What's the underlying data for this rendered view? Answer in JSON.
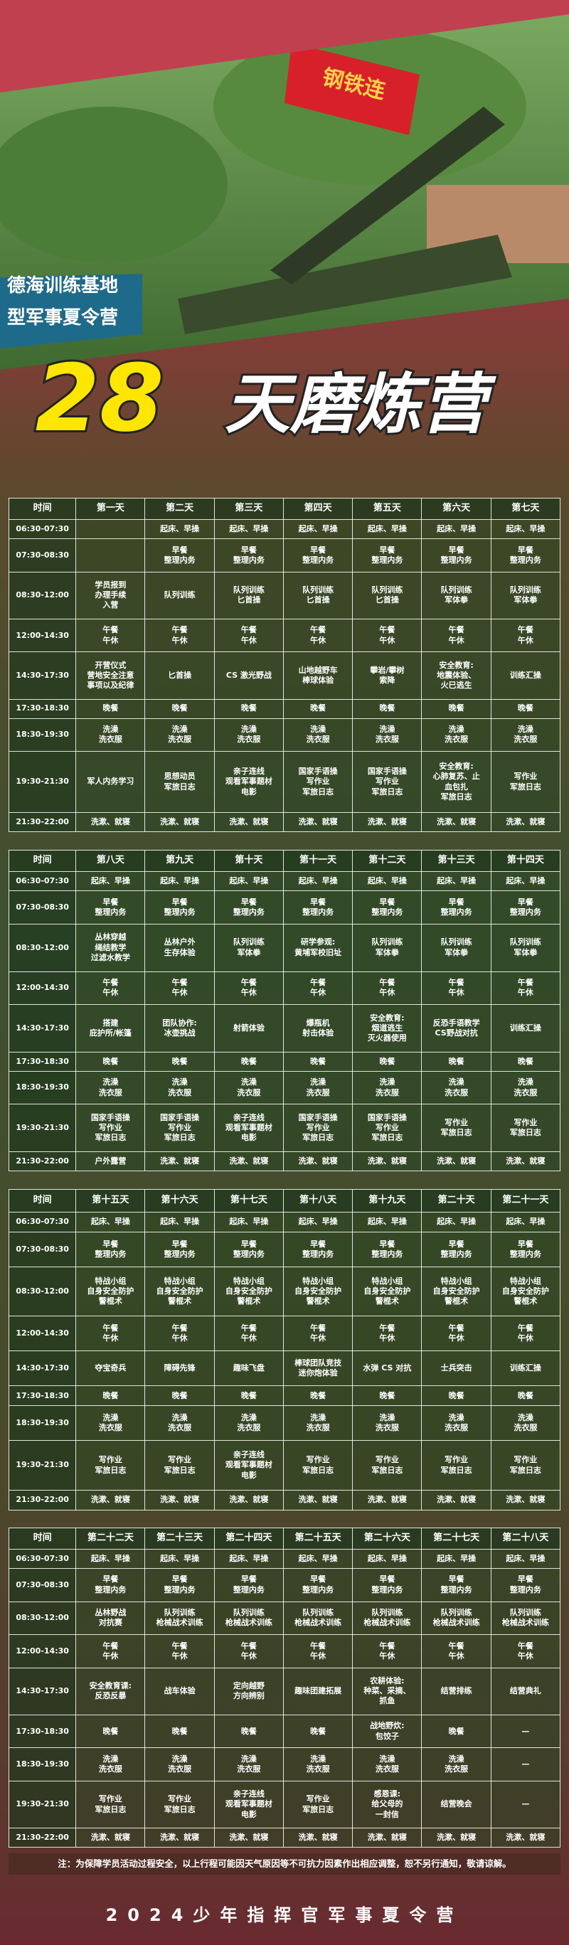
{
  "photo": {
    "flag": "钢铁连",
    "banner_lines": [
      "德海训练基地",
      "型军事夏令营"
    ]
  },
  "title": {
    "number": "28",
    "text": "天磨炼营"
  },
  "tables": [
    {
      "header": [
        "时间",
        "第一天",
        "第二天",
        "第三天",
        "第四天",
        "第五天",
        "第六天",
        "第七天"
      ],
      "rows": [
        [
          "06:30-07:30",
          null,
          "起床、早操",
          "起床、早操",
          "起床、早操",
          "起床、早操",
          "起床、早操",
          "起床、早操"
        ],
        [
          "07:30-08:30",
          null,
          "早餐\n整理内务",
          "早餐\n整理内务",
          "早餐\n整理内务",
          "早餐\n整理内务",
          "早餐\n整理内务",
          "早餐\n整理内务"
        ],
        [
          "08:30-12:00",
          "学员报到\n办理手续\n入营",
          "队列训练",
          "队列训练\n匕首操",
          "队列训练\n匕首操",
          "队列训练\n匕首操",
          "队列训练\n军体拳",
          "队列训练\n军体拳"
        ],
        [
          "12:00-14:30",
          "午餐\n午休",
          "午餐\n午休",
          "午餐\n午休",
          "午餐\n午休",
          "午餐\n午休",
          "午餐\n午休",
          "午餐\n午休"
        ],
        [
          "14:30-17:30",
          "开营仪式\n营地安全注意\n事项以及纪律",
          "匕首操",
          "CS 激光野战",
          "山地越野车\n棒球体验",
          "攀岩/攀树\n索降",
          "安全教育:\n地震体验、\n火巳逃生",
          "训练汇操"
        ],
        [
          "17:30-18:30",
          "晚餐",
          "晚餐",
          "晚餐",
          "晚餐",
          "晚餐",
          "晚餐",
          "晚餐"
        ],
        [
          "18:30-19:30",
          "洗澡\n洗衣服",
          "洗澡\n洗衣服",
          "洗澡\n洗衣服",
          "洗澡\n洗衣服",
          "洗澡\n洗衣服",
          "洗澡\n洗衣服",
          "洗澡\n洗衣服"
        ],
        [
          "19:30-21:30",
          "军人内务学习",
          "思想动员\n军旅日志",
          "亲子连线\n观看军事题材\n电影",
          "国家手语操\n写作业\n军旅日志",
          "国家手语操\n写作业\n军旅日志",
          "安全教育:\n心肺复苏、止\n血包扎\n军旅日志",
          "写作业\n军旅日志"
        ],
        [
          "21:30-22:00",
          "洗漱、就寝",
          "洗漱、就寝",
          "洗漱、就寝",
          "洗漱、就寝",
          "洗漱、就寝",
          "洗漱、就寝",
          "洗漱、就寝"
        ]
      ]
    },
    {
      "header": [
        "时间",
        "第八天",
        "第九天",
        "第十天",
        "第十一天",
        "第十二天",
        "第十三天",
        "第十四天"
      ],
      "rows": [
        [
          "06:30-07:30",
          "起床、早操",
          "起床、早操",
          "起床、早操",
          "起床、早操",
          "起床、早操",
          "起床、早操",
          "起床、早操"
        ],
        [
          "07:30-08:30",
          "早餐\n整理内务",
          "早餐\n整理内务",
          "早餐\n整理内务",
          "早餐\n整理内务",
          "早餐\n整理内务",
          "早餐\n整理内务",
          "早餐\n整理内务"
        ],
        [
          "08:30-12:00",
          "丛林穿越\n绳结教学\n过滤水教学",
          "丛林户外\n生存体验",
          "队列训练\n军体拳",
          "研学参观:\n黄埔军校旧址",
          "队列训练\n军体拳",
          "队列训练\n军体拳",
          "队列训练\n军体拳"
        ],
        [
          "12:00-14:30",
          "午餐\n午休",
          "午餐\n午休",
          "午餐\n午休",
          "午餐\n午休",
          "午餐\n午休",
          "午餐\n午休",
          "午餐\n午休"
        ],
        [
          "14:30-17:30",
          "搭建\n庇护所/帐篷",
          "团队协作:\n冰壶挑战",
          "射箭体验",
          "爆瓶机\n射击体验",
          "安全教育:\n烟道逃生\n灭火器使用",
          "反恐手语教学\nCS野战对抗",
          "训练汇操"
        ],
        [
          "17:30-18:30",
          "晚餐",
          "晚餐",
          "晚餐",
          "晚餐",
          "晚餐",
          "晚餐",
          "晚餐"
        ],
        [
          "18:30-19:30",
          "洗澡\n洗衣服",
          "洗澡\n洗衣服",
          "洗澡\n洗衣服",
          "洗澡\n洗衣服",
          "洗澡\n洗衣服",
          "洗澡\n洗衣服",
          "洗澡\n洗衣服"
        ],
        [
          "19:30-21:30",
          "国家手语操\n写作业\n军旅日志",
          "国家手语操\n写作业\n军旅日志",
          "亲子连线\n观看军事题材\n电影",
          "国家手语操\n写作业\n军旅日志",
          "国家手语操\n写作业\n军旅日志",
          "写作业\n军旅日志",
          "写作业\n军旅日志"
        ],
        [
          "21:30-22:00",
          "户外露营",
          "洗漱、就寝",
          "洗漱、就寝",
          "洗漱、就寝",
          "洗漱、就寝",
          "洗漱、就寝",
          "洗漱、就寝"
        ]
      ]
    },
    {
      "header": [
        "时间",
        "第十五天",
        "第十六天",
        "第十七天",
        "第十八天",
        "第十九天",
        "第二十天",
        "第二十一天"
      ],
      "rows": [
        [
          "06:30-07:30",
          "起床、早操",
          "起床、早操",
          "起床、早操",
          "起床、早操",
          "起床、早操",
          "起床、早操",
          "起床、早操"
        ],
        [
          "07:30-08:30",
          "早餐\n整理内务",
          "早餐\n整理内务",
          "早餐\n整理内务",
          "早餐\n整理内务",
          "早餐\n整理内务",
          "早餐\n整理内务",
          "早餐\n整理内务"
        ],
        [
          "08:30-12:00",
          "特战小组\n自身安全防护\n警棍术",
          "特战小组\n自身安全防护\n警棍术",
          "特战小组\n自身安全防护\n警棍术",
          "特战小组\n自身安全防护\n警棍术",
          "特战小组\n自身安全防护\n警棍术",
          "特战小组\n自身安全防护\n警棍术",
          "特战小组\n自身安全防护\n警棍术"
        ],
        [
          "12:00-14:30",
          "午餐\n午休",
          "午餐\n午休",
          "午餐\n午休",
          "午餐\n午休",
          "午餐\n午休",
          "午餐\n午休",
          "午餐\n午休"
        ],
        [
          "14:30-17:30",
          "夺宝奇兵",
          "障碍先锋",
          "趣味飞盘",
          "棒球团队竞技\n迷你炮体验",
          "水弹 CS 对抗",
          "士兵突击",
          "训练汇操"
        ],
        [
          "17:30-18:30",
          "晚餐",
          "晚餐",
          "晚餐",
          "晚餐",
          "晚餐",
          "晚餐",
          "晚餐"
        ],
        [
          "18:30-19:30",
          "洗澡\n洗衣服",
          "洗澡\n洗衣服",
          "洗澡\n洗衣服",
          "洗澡\n洗衣服",
          "洗澡\n洗衣服",
          "洗澡\n洗衣服",
          "洗澡\n洗衣服"
        ],
        [
          "19:30-21:30",
          "写作业\n军旅日志",
          "写作业\n军旅日志",
          "亲子连线\n观看军事题材\n电影",
          "写作业\n军旅日志",
          "写作业\n军旅日志",
          "写作业\n军旅日志",
          "写作业\n军旅日志"
        ],
        [
          "21:30-22:00",
          "洗漱、就寝",
          "洗漱、就寝",
          "洗漱、就寝",
          "洗漱、就寝",
          "洗漱、就寝",
          "洗漱、就寝",
          "洗漱、就寝"
        ]
      ]
    },
    {
      "header": [
        "时间",
        "第二十二天",
        "第二十三天",
        "第二十四天",
        "第二十五天",
        "第二十六天",
        "第二十七天",
        "第二十八天"
      ],
      "rows": [
        [
          "06:30-07:30",
          "起床、早操",
          "起床、早操",
          "起床、早操",
          "起床、早操",
          "起床、早操",
          "起床、早操",
          "起床、早操"
        ],
        [
          "07:30-08:30",
          "早餐\n整理内务",
          "早餐\n整理内务",
          "早餐\n整理内务",
          "早餐\n整理内务",
          "早餐\n整理内务",
          "早餐\n整理内务",
          "早餐\n整理内务"
        ],
        [
          "08:30-12:00",
          "丛林野战\n对抗赛",
          "队列训练\n枪械战术训练",
          "队列训练\n枪械战术训练",
          "队列训练\n枪械战术训练",
          "队列训练\n枪械战术训练",
          "队列训练\n枪械战术训练",
          "队列训练\n枪械战术训练"
        ],
        [
          "12:00-14:30",
          "午餐\n午休",
          "午餐\n午休",
          "午餐\n午休",
          "午餐\n午休",
          "午餐\n午休",
          "午餐\n午休",
          "午餐\n午休"
        ],
        [
          "14:30-17:30",
          "安全教育课:\n反恐反暴",
          "战车体验",
          "定向越野\n方向辨别",
          "趣味团建拓展",
          "农耕体验:\n种菜、采摘、\n抓鱼",
          "结营排练",
          "结营典礼"
        ],
        [
          "17:30-18:30",
          "晚餐",
          "晚餐",
          "晚餐",
          "晚餐",
          "战地野炊:\n包饺子",
          "晚餐",
          "—"
        ],
        [
          "18:30-19:30",
          "洗澡\n洗衣服",
          "洗澡\n洗衣服",
          "洗澡\n洗衣服",
          "洗澡\n洗衣服",
          "洗澡\n洗衣服",
          "洗澡\n洗衣服",
          "—"
        ],
        [
          "19:30-21:30",
          "写作业\n军旅日志",
          "写作业\n军旅日志",
          "亲子连线\n观看军事题材\n电影",
          "写作业\n军旅日志",
          "感恩课:\n给父母的\n一封信",
          "结营晚会",
          "—"
        ],
        [
          "21:30-22:00",
          "洗漱、就寝",
          "洗漱、就寝",
          "洗漱、就寝",
          "洗漱、就寝",
          "洗漱、就寝",
          "洗漱、就寝",
          "洗漱、就寝"
        ]
      ]
    }
  ],
  "note": "注：为保障学员活动过程安全，以上行程可能因天气原因等不可抗力因素作出相应调整，恕不另行通知，敬请谅解。",
  "footer": "2024少年指挥官军事夏令营"
}
